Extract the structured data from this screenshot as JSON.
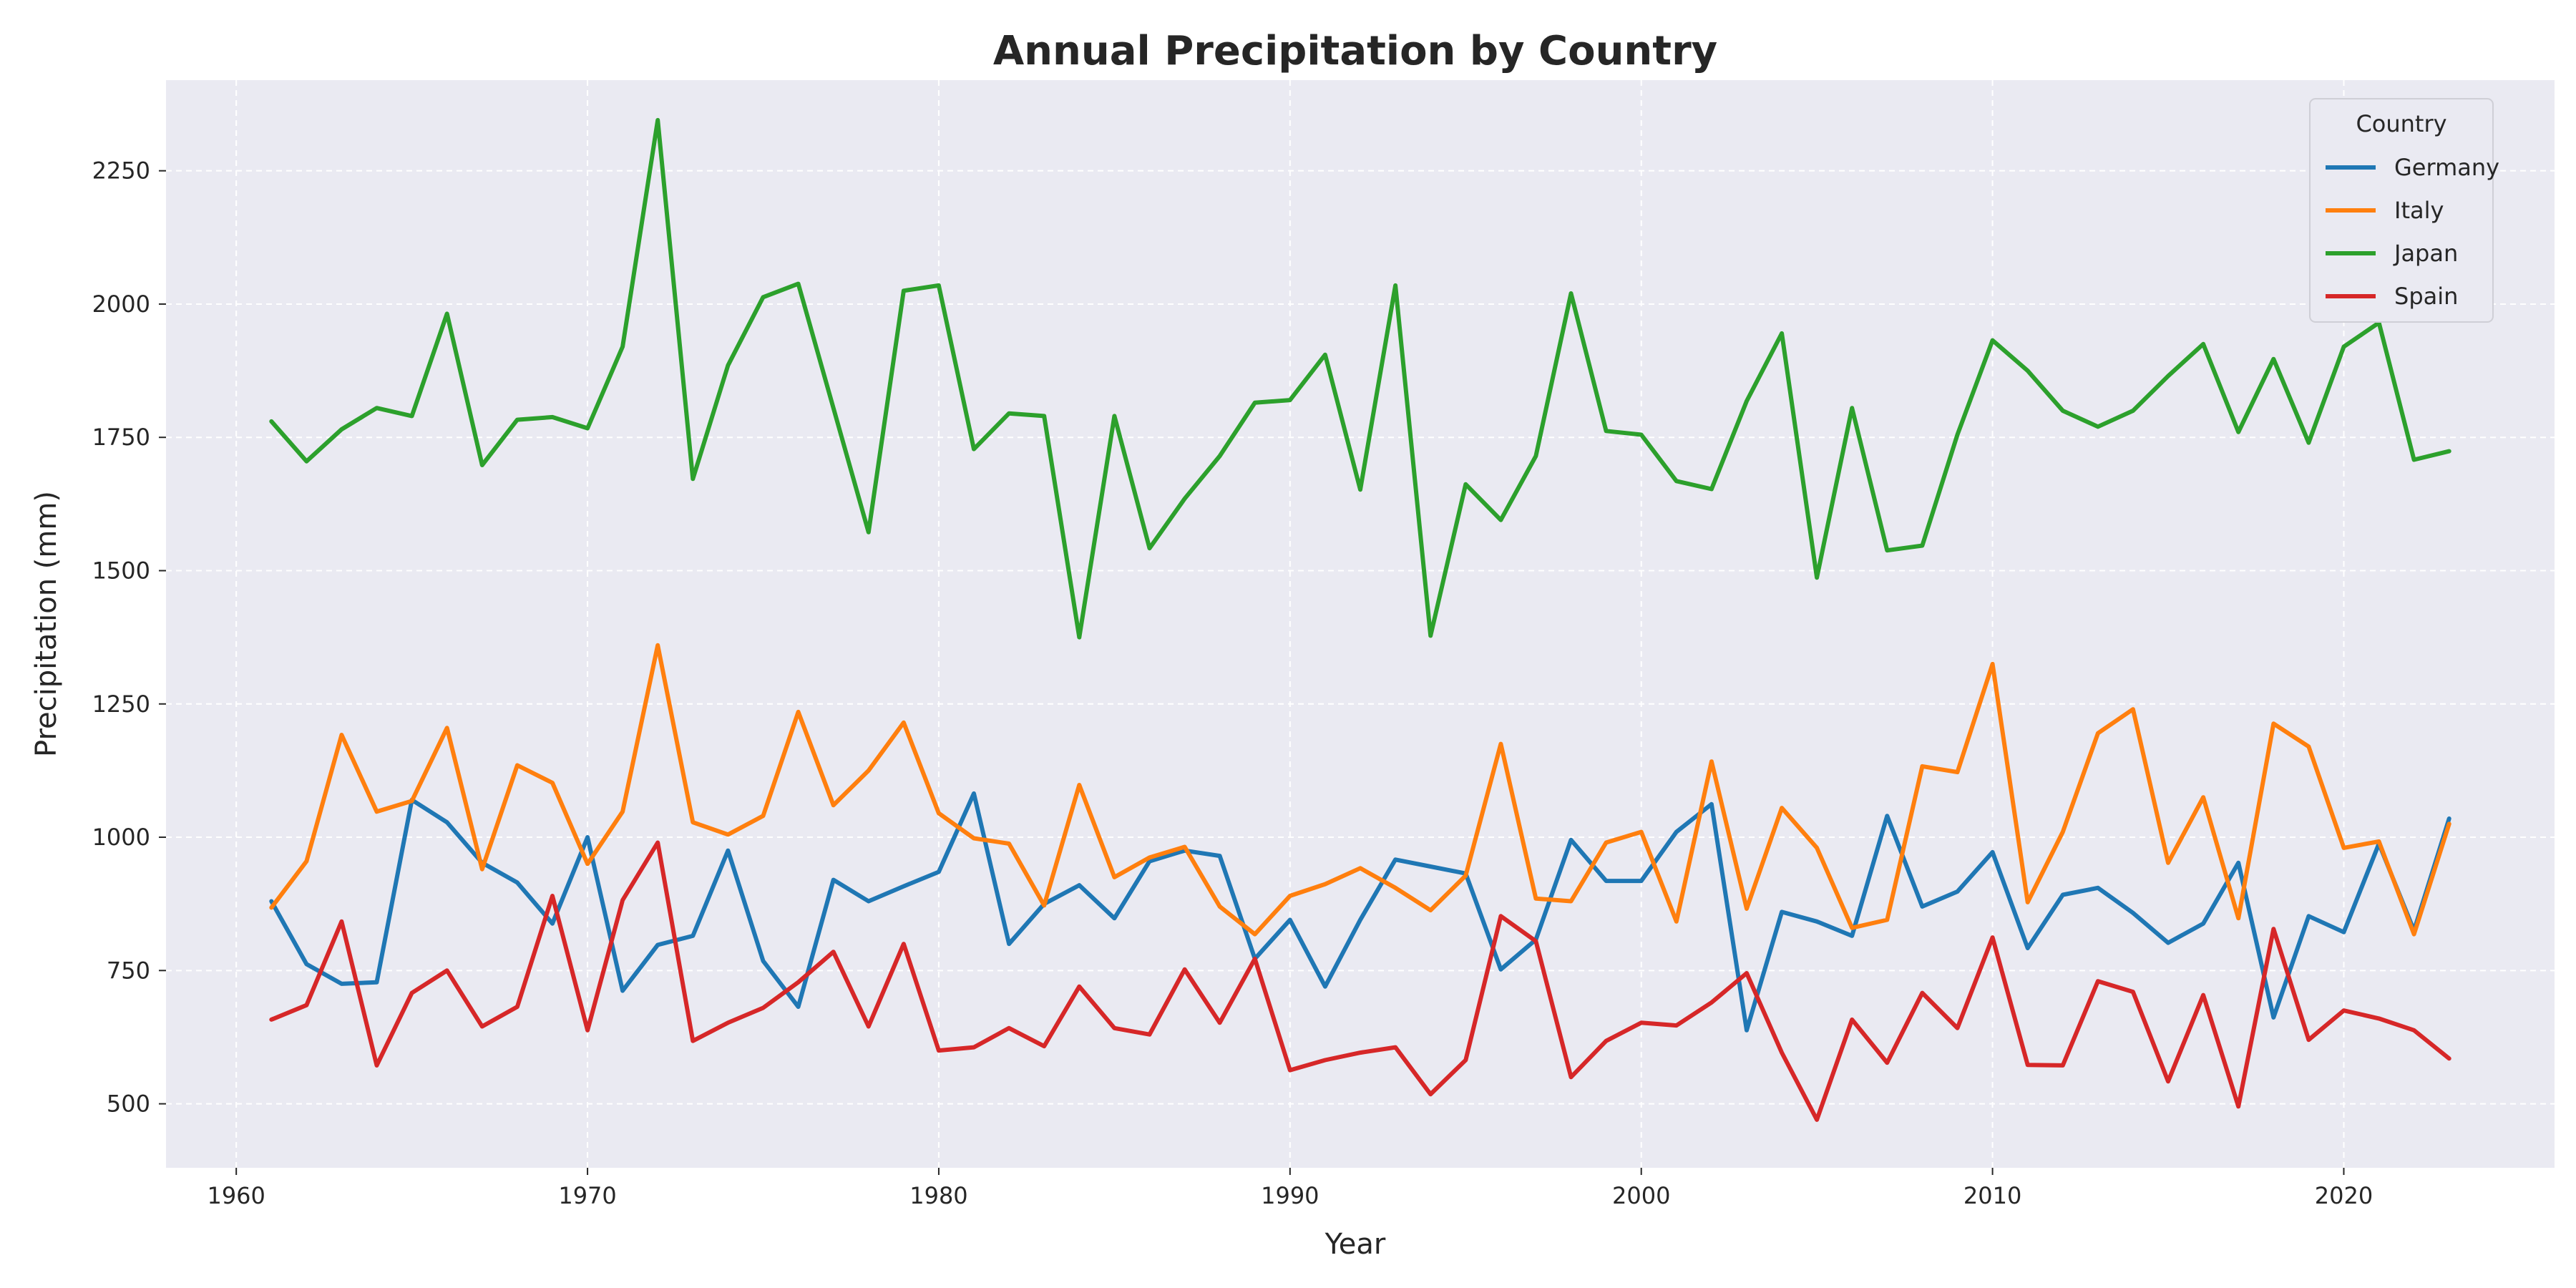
{
  "chart_data": {
    "type": "line",
    "title": "Annual Precipitation by Country",
    "xlabel": "Year",
    "ylabel": "Precipitation (mm)",
    "xlim": [
      1958,
      2026
    ],
    "ylim": [
      380,
      2420
    ],
    "xticks": [
      1960,
      1970,
      1980,
      1990,
      2000,
      2010,
      2020
    ],
    "yticks": [
      500,
      750,
      1000,
      1250,
      1500,
      1750,
      2000,
      2250
    ],
    "grid": true,
    "legend": {
      "title": "Country",
      "position": "top-right"
    },
    "x": [
      1961,
      1962,
      1963,
      1964,
      1965,
      1966,
      1967,
      1968,
      1969,
      1970,
      1971,
      1972,
      1973,
      1974,
      1975,
      1976,
      1977,
      1978,
      1979,
      1980,
      1981,
      1982,
      1983,
      1984,
      1985,
      1986,
      1987,
      1988,
      1989,
      1990,
      1991,
      1992,
      1993,
      1994,
      1995,
      1996,
      1997,
      1998,
      1999,
      2000,
      2001,
      2002,
      2003,
      2004,
      2005,
      2006,
      2007,
      2008,
      2009,
      2010,
      2011,
      2012,
      2013,
      2014,
      2015,
      2016,
      2017,
      2018,
      2019,
      2020,
      2021,
      2022,
      2023
    ],
    "series": [
      {
        "name": "Germany",
        "color": "#1f77b4",
        "values": [
          880,
          762,
          725,
          728,
          1070,
          1028,
          952,
          915,
          838,
          1000,
          712,
          798,
          815,
          975,
          768,
          682,
          920,
          880,
          908,
          935,
          1082,
          800,
          875,
          910,
          848,
          955,
          975,
          965,
          772,
          845,
          720,
          845,
          958,
          945,
          932,
          752,
          808,
          995,
          918,
          918,
          1010,
          1062,
          638,
          860,
          842,
          815,
          1040,
          870,
          898,
          972,
          792,
          892,
          905,
          858,
          802,
          838,
          952,
          662,
          852,
          822,
          988,
          825,
          1035
        ]
      },
      {
        "name": "Italy",
        "color": "#ff7f0e",
        "values": [
          868,
          955,
          1192,
          1048,
          1068,
          1205,
          940,
          1135,
          1102,
          950,
          1048,
          1360,
          1028,
          1005,
          1040,
          1235,
          1060,
          1125,
          1215,
          1045,
          998,
          988,
          872,
          1098,
          925,
          962,
          982,
          870,
          818,
          890,
          912,
          942,
          905,
          863,
          928,
          1175,
          885,
          880,
          990,
          1010,
          842,
          1142,
          866,
          1055,
          980,
          830,
          845,
          1133,
          1122,
          1325,
          878,
          1010,
          1195,
          1240,
          952,
          1075,
          848,
          1213,
          1170,
          980,
          992,
          818,
          1025
        ]
      },
      {
        "name": "Japan",
        "color": "#2ca02c",
        "values": [
          1780,
          1705,
          1765,
          1805,
          1790,
          1982,
          1698,
          1783,
          1788,
          1767,
          1920,
          2345,
          1672,
          1885,
          2013,
          2038,
          1805,
          1572,
          2025,
          2035,
          1728,
          1795,
          1790,
          1375,
          1790,
          1542,
          1635,
          1715,
          1815,
          1820,
          1905,
          1652,
          2035,
          1378,
          1662,
          1595,
          1715,
          2020,
          1762,
          1755,
          1668,
          1653,
          1818,
          1945,
          1487,
          1805,
          1538,
          1547,
          1755,
          1932,
          1875,
          1800,
          1770,
          1800,
          1865,
          1925,
          1760,
          1897,
          1740,
          1920,
          1965,
          1708,
          1724
        ]
      },
      {
        "name": "Spain",
        "color": "#d62728",
        "values": [
          658,
          685,
          842,
          572,
          708,
          750,
          645,
          682,
          890,
          638,
          882,
          990,
          618,
          652,
          680,
          728,
          785,
          645,
          800,
          600,
          606,
          642,
          608,
          720,
          642,
          630,
          752,
          652,
          772,
          563,
          582,
          596,
          606,
          518,
          582,
          852,
          805,
          550,
          618,
          652,
          647,
          690,
          745,
          596,
          470,
          658,
          577,
          708,
          642,
          812,
          573,
          572,
          730,
          710,
          542,
          704,
          495,
          828,
          620,
          675,
          660,
          638,
          585
        ]
      }
    ]
  }
}
